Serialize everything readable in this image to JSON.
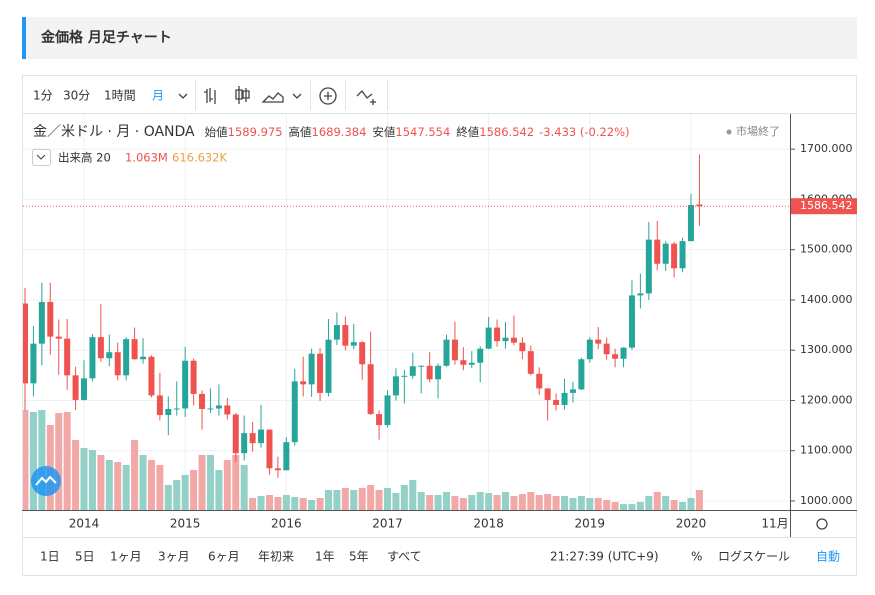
{
  "header": {
    "title": "金価格 月足チャート"
  },
  "toolbar": {
    "intervals": [
      "1分",
      "30分",
      "1時間",
      "月"
    ]
  },
  "bottom_bar": {
    "ranges": [
      "1日",
      "5日",
      "1ヶ月",
      "3ヶ月",
      "6ヶ月",
      "年初来",
      "1年",
      "5年",
      "すべて"
    ],
    "time": "21:27:39 (UTC+9)",
    "percent": "%",
    "log_scale": "ログスケール",
    "auto": "自動"
  },
  "chart_data": {
    "type": "candlestick",
    "title": "金／米ドル · 月 · OANDA",
    "ohlc_names": {
      "open": "始値",
      "high": "高値",
      "low": "安値",
      "close": "終値"
    },
    "change": "-3.433 (-0.22%)",
    "market_status": "市場終了",
    "volume_title": "出来高 20",
    "volume_last_label": "1.063M",
    "volume_ma_label": "616.632K",
    "up_color": "#26a69a",
    "down_color": "#ef5350",
    "up_volume_color": "#92d0c8",
    "down_volume_color": "#f3a8a8",
    "categories": [
      null,
      null,
      null,
      null,
      null,
      null,
      null,
      "2014",
      null,
      null,
      null,
      null,
      null,
      null,
      null,
      null,
      null,
      null,
      null,
      "2015",
      null,
      null,
      null,
      null,
      null,
      null,
      null,
      null,
      null,
      null,
      null,
      "2016",
      null,
      null,
      null,
      null,
      null,
      null,
      null,
      null,
      null,
      null,
      null,
      "2017",
      null,
      null,
      null,
      null,
      null,
      null,
      null,
      null,
      null,
      null,
      null,
      "2018",
      null,
      null,
      null,
      null,
      null,
      null,
      null,
      null,
      null,
      null,
      null,
      "2019",
      null,
      null,
      null,
      null,
      null,
      null,
      null,
      null,
      null,
      null,
      null,
      "2020",
      null
    ],
    "x_end_label": "11月",
    "open": [
      1393,
      1234,
      1313,
      1396,
      1327,
      1323,
      1250,
      1201,
      1244,
      1326,
      1284,
      1296,
      1250,
      1322,
      1282,
      1287,
      1210,
      1171,
      1183,
      1184,
      1279,
      1213,
      1183,
      1184,
      1190,
      1172,
      1095,
      1135,
      1115,
      1142,
      1065,
      1061,
      1117,
      1238,
      1232,
      1293,
      1215,
      1321,
      1350,
      1309,
      1316,
      1272,
      1173,
      1151,
      1210,
      1248,
      1249,
      1268,
      1269,
      1242,
      1269,
      1321,
      1280,
      1271,
      1275,
      1303,
      1345,
      1318,
      1325,
      1315,
      1298,
      1253,
      1224,
      1201,
      1191,
      1215,
      1222,
      1282,
      1321,
      1313,
      1292,
      1283,
      1305,
      1409,
      1413,
      1520,
      1472,
      1512,
      1463,
      1517,
      1589.975
    ],
    "high": [
      1424,
      1348,
      1434,
      1434,
      1361,
      1362,
      1267,
      1280,
      1332,
      1392,
      1331,
      1315,
      1326,
      1345,
      1324,
      1290,
      1255,
      1208,
      1238,
      1307,
      1283,
      1220,
      1224,
      1232,
      1205,
      1175,
      1170,
      1157,
      1191,
      1142,
      1088,
      1127,
      1263,
      1287,
      1303,
      1304,
      1362,
      1375,
      1367,
      1352,
      1318,
      1337,
      1180,
      1220,
      1264,
      1261,
      1295,
      1270,
      1296,
      1274,
      1331,
      1357,
      1306,
      1298,
      1308,
      1366,
      1361,
      1356,
      1369,
      1326,
      1309,
      1266,
      1224,
      1214,
      1243,
      1237,
      1285,
      1326,
      1346,
      1325,
      1303,
      1306,
      1439,
      1452,
      1555,
      1557,
      1517,
      1516,
      1524,
      1611,
      1689.384
    ],
    "low": [
      1180,
      1208,
      1270,
      1291,
      1251,
      1221,
      1181,
      1200,
      1238,
      1277,
      1268,
      1240,
      1240,
      1281,
      1273,
      1206,
      1160,
      1131,
      1170,
      1167,
      1190,
      1142,
      1175,
      1170,
      1162,
      1077,
      1080,
      1098,
      1106,
      1052,
      1046,
      1061,
      1110,
      1208,
      1207,
      1199,
      1208,
      1310,
      1300,
      1302,
      1241,
      1171,
      1122,
      1146,
      1200,
      1194,
      1243,
      1214,
      1236,
      1204,
      1267,
      1271,
      1260,
      1264,
      1236,
      1302,
      1307,
      1303,
      1310,
      1282,
      1250,
      1211,
      1160,
      1180,
      1182,
      1196,
      1221,
      1275,
      1302,
      1281,
      1266,
      1266,
      1301,
      1383,
      1400,
      1459,
      1458,
      1445,
      1455,
      1517,
      1547.554
    ],
    "close": [
      1234,
      1313,
      1396,
      1327,
      1323,
      1250,
      1201,
      1244,
      1326,
      1284,
      1296,
      1250,
      1322,
      1282,
      1287,
      1210,
      1171,
      1183,
      1184,
      1279,
      1213,
      1183,
      1184,
      1190,
      1172,
      1095,
      1135,
      1115,
      1142,
      1065,
      1061,
      1117,
      1238,
      1232,
      1293,
      1215,
      1321,
      1350,
      1309,
      1316,
      1272,
      1173,
      1151,
      1210,
      1248,
      1249,
      1268,
      1269,
      1242,
      1269,
      1321,
      1280,
      1271,
      1275,
      1303,
      1345,
      1318,
      1325,
      1315,
      1298,
      1253,
      1224,
      1201,
      1191,
      1215,
      1222,
      1282,
      1321,
      1313,
      1292,
      1283,
      1305,
      1409,
      1413,
      1520,
      1472,
      1512,
      1463,
      1517,
      1589,
      1586.542
    ],
    "volume": [
      5315000,
      5208700,
      5315000,
      4517750,
      5155550,
      5208700,
      3720500,
      3295300,
      3189000,
      2923250,
      2657500,
      2551200,
      2391750,
      3720500,
      2923250,
      2657500,
      2391750,
      1328750,
      1594500,
      1860250,
      2126000,
      2923250,
      2923250,
      2126000,
      2657500,
      2923250,
      2391750,
      637800,
      744100,
      797250,
      690950,
      797250,
      690950,
      637800,
      531500,
      637800,
      1063000,
      1063000,
      1169300,
      1063000,
      1169300,
      1328750,
      1063000,
      1169300,
      903550,
      1328750,
      1594500,
      956700,
      797250,
      797250,
      956700,
      744100,
      637800,
      797250,
      956700,
      903550,
      797250,
      956700,
      744100,
      850400,
      956700,
      797250,
      850400,
      744100,
      744100,
      637800,
      744100,
      637800,
      637800,
      531500,
      425200,
      318900,
      318900,
      425200,
      744100,
      956700,
      744100,
      531500,
      425200,
      637800,
      1063000
    ],
    "ylim": [
      982,
      1770
    ],
    "yticks": [
      {
        "value": 1000,
        "label": "1000.000"
      },
      {
        "value": 1100,
        "label": "1100.000"
      },
      {
        "value": 1200,
        "label": "1200.000"
      },
      {
        "value": 1300,
        "label": "1300.000"
      },
      {
        "value": 1400,
        "label": "1400.000"
      },
      {
        "value": 1500,
        "label": "1500.000"
      },
      {
        "value": 1600,
        "label": "1600.000"
      },
      {
        "value": 1700,
        "label": "1700.000"
      }
    ],
    "grid": true
  }
}
